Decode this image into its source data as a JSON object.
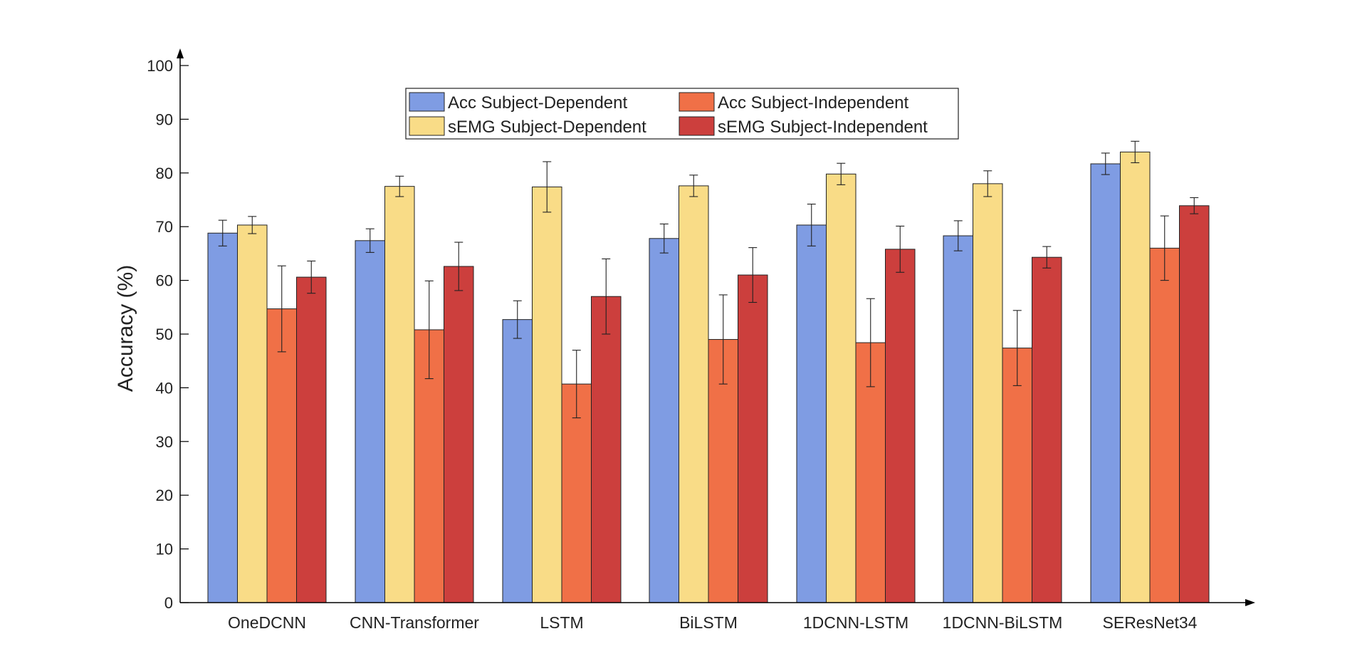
{
  "chart_data": {
    "type": "bar",
    "title": "",
    "xlabel": "",
    "ylabel": "Accuracy (%)",
    "ylim": [
      0,
      100
    ],
    "yticks": [
      0,
      10,
      20,
      30,
      40,
      50,
      60,
      70,
      80,
      90,
      100
    ],
    "grid": false,
    "legend_position": "top-center",
    "categories": [
      "OneDCNN",
      "CNN-Transformer",
      "LSTM",
      "BiLSTM",
      "1DCNN-LSTM",
      "1DCNN-BiLSTM",
      "SEResNet34"
    ],
    "series": [
      {
        "name": "Acc Subject-Dependent",
        "color": "#7f9ce3",
        "values": [
          68.8,
          67.4,
          52.7,
          67.8,
          70.3,
          68.3,
          81.7
        ],
        "errors": [
          2.4,
          2.2,
          3.5,
          2.7,
          3.9,
          2.8,
          2.0
        ]
      },
      {
        "name": "sEMG Subject-Dependent",
        "color": "#f9dc87",
        "values": [
          70.3,
          77.5,
          77.4,
          77.6,
          79.8,
          78.0,
          83.9
        ],
        "errors": [
          1.6,
          1.9,
          4.7,
          2.0,
          2.0,
          2.4,
          2.0
        ]
      },
      {
        "name": "Acc Subject-Independent",
        "color": "#f07047",
        "values": [
          54.7,
          50.8,
          40.7,
          49.0,
          48.4,
          47.4,
          66.0
        ],
        "errors": [
          8.0,
          9.1,
          6.3,
          8.3,
          8.2,
          7.0,
          6.0
        ]
      },
      {
        "name": "sEMG Subject-Independent",
        "color": "#cc3f3d",
        "values": [
          60.6,
          62.6,
          57.0,
          61.0,
          65.8,
          64.3,
          73.9
        ],
        "errors": [
          3.0,
          4.5,
          7.0,
          5.1,
          4.3,
          2.0,
          1.5
        ]
      }
    ]
  }
}
